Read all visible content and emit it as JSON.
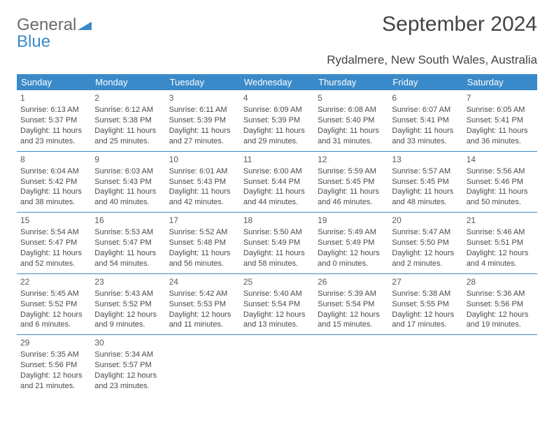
{
  "logo": {
    "text1": "General",
    "text2": "Blue"
  },
  "title": "September 2024",
  "location": "Rydalmere, New South Wales, Australia",
  "colors": {
    "header_bg": "#3a8ac9",
    "header_fg": "#ffffff",
    "border": "#3a8ac9",
    "text": "#4a4a4a"
  },
  "dayHeaders": [
    "Sunday",
    "Monday",
    "Tuesday",
    "Wednesday",
    "Thursday",
    "Friday",
    "Saturday"
  ],
  "weeks": [
    [
      {
        "n": "1",
        "sr": "6:13 AM",
        "ss": "5:37 PM",
        "dl": "11 hours and 23 minutes."
      },
      {
        "n": "2",
        "sr": "6:12 AM",
        "ss": "5:38 PM",
        "dl": "11 hours and 25 minutes."
      },
      {
        "n": "3",
        "sr": "6:11 AM",
        "ss": "5:39 PM",
        "dl": "11 hours and 27 minutes."
      },
      {
        "n": "4",
        "sr": "6:09 AM",
        "ss": "5:39 PM",
        "dl": "11 hours and 29 minutes."
      },
      {
        "n": "5",
        "sr": "6:08 AM",
        "ss": "5:40 PM",
        "dl": "11 hours and 31 minutes."
      },
      {
        "n": "6",
        "sr": "6:07 AM",
        "ss": "5:41 PM",
        "dl": "11 hours and 33 minutes."
      },
      {
        "n": "7",
        "sr": "6:05 AM",
        "ss": "5:41 PM",
        "dl": "11 hours and 36 minutes."
      }
    ],
    [
      {
        "n": "8",
        "sr": "6:04 AM",
        "ss": "5:42 PM",
        "dl": "11 hours and 38 minutes."
      },
      {
        "n": "9",
        "sr": "6:03 AM",
        "ss": "5:43 PM",
        "dl": "11 hours and 40 minutes."
      },
      {
        "n": "10",
        "sr": "6:01 AM",
        "ss": "5:43 PM",
        "dl": "11 hours and 42 minutes."
      },
      {
        "n": "11",
        "sr": "6:00 AM",
        "ss": "5:44 PM",
        "dl": "11 hours and 44 minutes."
      },
      {
        "n": "12",
        "sr": "5:59 AM",
        "ss": "5:45 PM",
        "dl": "11 hours and 46 minutes."
      },
      {
        "n": "13",
        "sr": "5:57 AM",
        "ss": "5:45 PM",
        "dl": "11 hours and 48 minutes."
      },
      {
        "n": "14",
        "sr": "5:56 AM",
        "ss": "5:46 PM",
        "dl": "11 hours and 50 minutes."
      }
    ],
    [
      {
        "n": "15",
        "sr": "5:54 AM",
        "ss": "5:47 PM",
        "dl": "11 hours and 52 minutes."
      },
      {
        "n": "16",
        "sr": "5:53 AM",
        "ss": "5:47 PM",
        "dl": "11 hours and 54 minutes."
      },
      {
        "n": "17",
        "sr": "5:52 AM",
        "ss": "5:48 PM",
        "dl": "11 hours and 56 minutes."
      },
      {
        "n": "18",
        "sr": "5:50 AM",
        "ss": "5:49 PM",
        "dl": "11 hours and 58 minutes."
      },
      {
        "n": "19",
        "sr": "5:49 AM",
        "ss": "5:49 PM",
        "dl": "12 hours and 0 minutes."
      },
      {
        "n": "20",
        "sr": "5:47 AM",
        "ss": "5:50 PM",
        "dl": "12 hours and 2 minutes."
      },
      {
        "n": "21",
        "sr": "5:46 AM",
        "ss": "5:51 PM",
        "dl": "12 hours and 4 minutes."
      }
    ],
    [
      {
        "n": "22",
        "sr": "5:45 AM",
        "ss": "5:52 PM",
        "dl": "12 hours and 6 minutes."
      },
      {
        "n": "23",
        "sr": "5:43 AM",
        "ss": "5:52 PM",
        "dl": "12 hours and 9 minutes."
      },
      {
        "n": "24",
        "sr": "5:42 AM",
        "ss": "5:53 PM",
        "dl": "12 hours and 11 minutes."
      },
      {
        "n": "25",
        "sr": "5:40 AM",
        "ss": "5:54 PM",
        "dl": "12 hours and 13 minutes."
      },
      {
        "n": "26",
        "sr": "5:39 AM",
        "ss": "5:54 PM",
        "dl": "12 hours and 15 minutes."
      },
      {
        "n": "27",
        "sr": "5:38 AM",
        "ss": "5:55 PM",
        "dl": "12 hours and 17 minutes."
      },
      {
        "n": "28",
        "sr": "5:36 AM",
        "ss": "5:56 PM",
        "dl": "12 hours and 19 minutes."
      }
    ],
    [
      {
        "n": "29",
        "sr": "5:35 AM",
        "ss": "5:56 PM",
        "dl": "12 hours and 21 minutes."
      },
      {
        "n": "30",
        "sr": "5:34 AM",
        "ss": "5:57 PM",
        "dl": "12 hours and 23 minutes."
      },
      null,
      null,
      null,
      null,
      null
    ]
  ],
  "labels": {
    "sunrise": "Sunrise: ",
    "sunset": "Sunset: ",
    "daylight": "Daylight: "
  }
}
